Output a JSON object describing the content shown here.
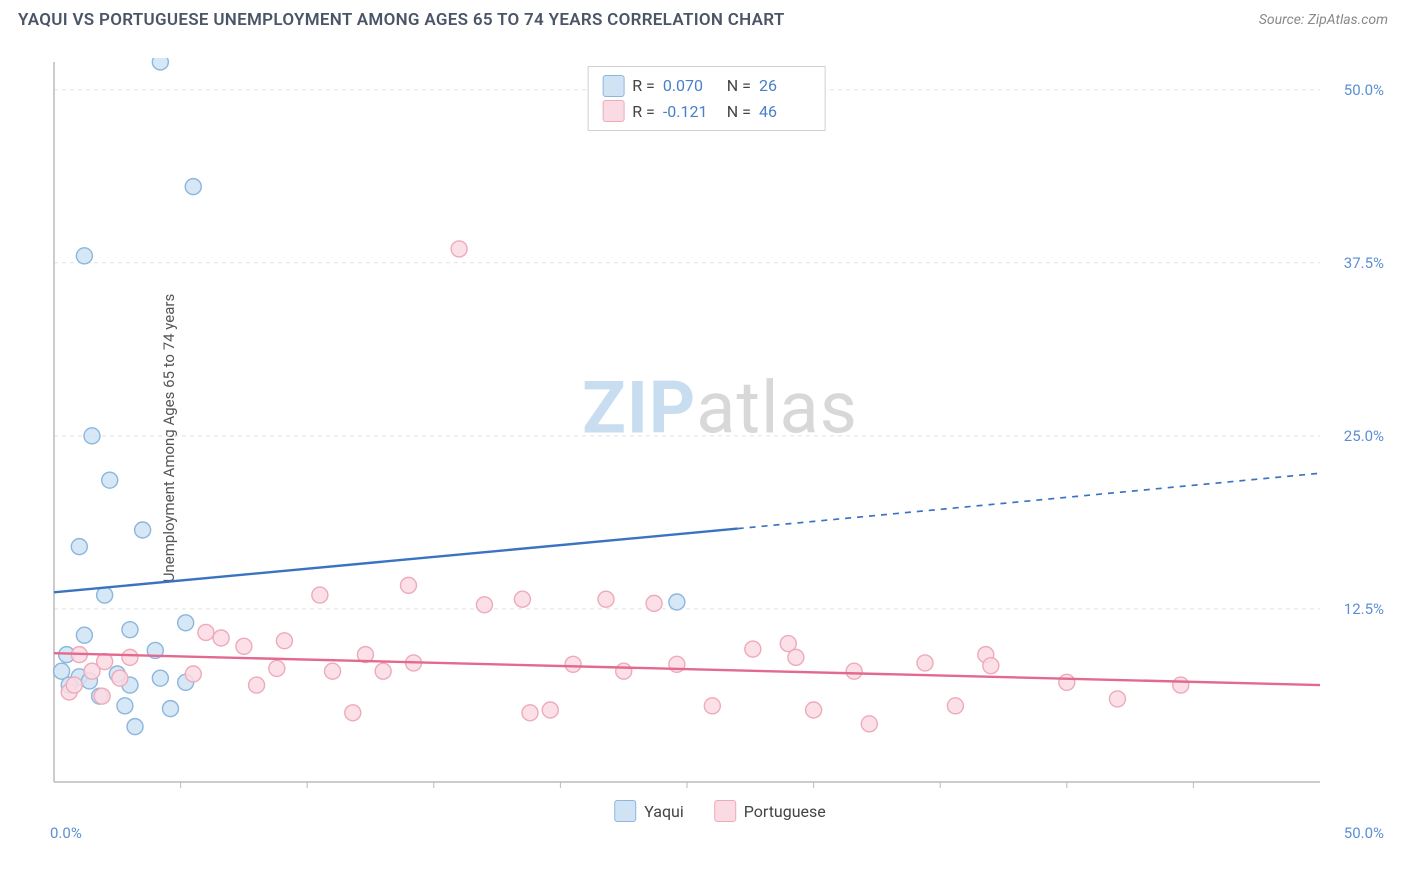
{
  "title": "YAQUI VS PORTUGUESE UNEMPLOYMENT AMONG AGES 65 TO 74 YEARS CORRELATION CHART",
  "source": "Source: ZipAtlas.com",
  "watermark": {
    "zip": "ZIP",
    "atlas": "atlas"
  },
  "chart": {
    "type": "scatter",
    "ylabel": "Unemployment Among Ages 65 to 74 years",
    "background_color": "#ffffff",
    "grid_color": "#e2e2e2",
    "axis_color": "#bbbbbb",
    "label_color": "#5b8fd4",
    "label_fontsize": 15,
    "xlim": [
      0,
      50
    ],
    "ylim": [
      0,
      52
    ],
    "xticks": [
      0,
      25,
      50
    ],
    "yticks": [
      12.5,
      25.0,
      37.5,
      50.0
    ],
    "ytick_labels": [
      "12.5%",
      "25.0%",
      "37.5%",
      "50.0%"
    ],
    "x_minmax_labels": [
      "0.0%",
      "50.0%"
    ],
    "minor_x_step": 5,
    "marker_radius": 8,
    "marker_stroke_width": 1.4,
    "trend_line_width": 2.4,
    "series": [
      {
        "name": "Yaqui",
        "fill": "#cfe3f5",
        "stroke": "#8cb6de",
        "line_color": "#3a73c2",
        "r_label": "R =",
        "r_value": "0.070",
        "n_label": "N =",
        "n_value": "26",
        "trend": {
          "x1": 0,
          "y1": 13.7,
          "x2_solid": 27,
          "y2_solid": 18.3,
          "x2": 50,
          "y2": 22.3,
          "dashed_tail": true
        },
        "points": [
          [
            4.2,
            52.0
          ],
          [
            5.5,
            43.0
          ],
          [
            1.2,
            38.0
          ],
          [
            1.5,
            25.0
          ],
          [
            2.2,
            21.8
          ],
          [
            1.0,
            17.0
          ],
          [
            3.5,
            18.2
          ],
          [
            3.0,
            11.0
          ],
          [
            2.0,
            13.5
          ],
          [
            0.3,
            8.0
          ],
          [
            0.5,
            9.2
          ],
          [
            1.0,
            7.6
          ],
          [
            0.6,
            7.0
          ],
          [
            1.4,
            7.3
          ],
          [
            1.8,
            6.2
          ],
          [
            2.8,
            5.5
          ],
          [
            4.2,
            7.5
          ],
          [
            4.6,
            5.3
          ],
          [
            5.2,
            7.2
          ],
          [
            5.2,
            11.5
          ],
          [
            3.2,
            4.0
          ],
          [
            3.0,
            7.0
          ],
          [
            4.0,
            9.5
          ],
          [
            2.5,
            7.8
          ],
          [
            1.2,
            10.6
          ],
          [
            24.6,
            13.0
          ]
        ]
      },
      {
        "name": "Portuguese",
        "fill": "#fbdbe3",
        "stroke": "#eeaabb",
        "line_color": "#e26a8f",
        "r_label": "R =",
        "r_value": "-0.121",
        "n_label": "N =",
        "n_value": "46",
        "trend": {
          "x1": 0,
          "y1": 9.3,
          "x2_solid": 50,
          "y2_solid": 7.0,
          "x2": 50,
          "y2": 7.0,
          "dashed_tail": false
        },
        "points": [
          [
            16.0,
            38.5
          ],
          [
            10.5,
            13.5
          ],
          [
            14.0,
            14.2
          ],
          [
            17.0,
            12.8
          ],
          [
            18.5,
            13.2
          ],
          [
            21.8,
            13.2
          ],
          [
            23.7,
            12.9
          ],
          [
            1.0,
            9.2
          ],
          [
            1.5,
            8.0
          ],
          [
            2.0,
            8.7
          ],
          [
            2.6,
            7.5
          ],
          [
            3.0,
            9.0
          ],
          [
            0.6,
            6.5
          ],
          [
            0.8,
            7.0
          ],
          [
            1.9,
            6.2
          ],
          [
            5.5,
            7.8
          ],
          [
            6.0,
            10.8
          ],
          [
            6.6,
            10.4
          ],
          [
            7.5,
            9.8
          ],
          [
            8.0,
            7.0
          ],
          [
            8.8,
            8.2
          ],
          [
            9.1,
            10.2
          ],
          [
            11.0,
            8.0
          ],
          [
            12.3,
            9.2
          ],
          [
            13.0,
            8.0
          ],
          [
            14.2,
            8.6
          ],
          [
            11.8,
            5.0
          ],
          [
            18.8,
            5.0
          ],
          [
            19.6,
            5.2
          ],
          [
            20.5,
            8.5
          ],
          [
            22.5,
            8.0
          ],
          [
            24.6,
            8.5
          ],
          [
            26.0,
            5.5
          ],
          [
            27.6,
            9.6
          ],
          [
            29.0,
            10.0
          ],
          [
            29.3,
            9.0
          ],
          [
            30.0,
            5.2
          ],
          [
            31.6,
            8.0
          ],
          [
            32.2,
            4.2
          ],
          [
            34.4,
            8.6
          ],
          [
            35.6,
            5.5
          ],
          [
            36.8,
            9.2
          ],
          [
            37.0,
            8.4
          ],
          [
            40.0,
            7.2
          ],
          [
            42.0,
            6.0
          ],
          [
            44.5,
            7.0
          ]
        ]
      }
    ],
    "bottom_legend": [
      {
        "label": "Yaqui",
        "fill": "#cfe3f5",
        "stroke": "#8cb6de"
      },
      {
        "label": "Portuguese",
        "fill": "#fbdbe3",
        "stroke": "#eeaabb"
      }
    ]
  }
}
